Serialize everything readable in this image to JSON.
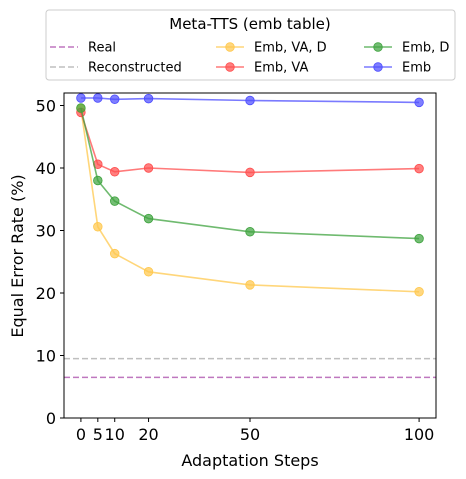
{
  "chart_data": {
    "type": "line",
    "legend": {
      "title": "Meta-TTS (emb table)",
      "placement": "top"
    },
    "xlabel": "Adaptation Steps",
    "ylabel": "Equal Error Rate (%)",
    "x": [
      0,
      5,
      10,
      20,
      50,
      100
    ],
    "xticks": [
      "0",
      "5",
      "10",
      "20",
      "50",
      "100"
    ],
    "yticks": [
      "0",
      "10",
      "20",
      "30",
      "40",
      "50"
    ],
    "xlim": [
      -5,
      105
    ],
    "ylim": [
      0,
      52
    ],
    "grid": false,
    "reference_lines": [
      {
        "name": "Real",
        "value": 6.5,
        "color": "#bf77bf",
        "style": "dashed"
      },
      {
        "name": "Reconstructed",
        "value": 9.5,
        "color": "#bfbfbf",
        "style": "dashed"
      }
    ],
    "series": [
      {
        "name": "Emb, VA, D",
        "color": "#ffc84d",
        "values": [
          49.5,
          30.6,
          26.3,
          23.4,
          21.3,
          20.2
        ]
      },
      {
        "name": "Emb, VA",
        "color": "#ff4d4d",
        "values": [
          48.9,
          40.6,
          39.4,
          40.0,
          39.3,
          39.9
        ]
      },
      {
        "name": "Emb, D",
        "color": "#3fa33f",
        "values": [
          49.6,
          38.0,
          34.7,
          31.9,
          29.8,
          28.7
        ]
      },
      {
        "name": "Emb",
        "color": "#4d4dff",
        "values": [
          51.2,
          51.2,
          51.0,
          51.1,
          50.8,
          50.5
        ]
      }
    ]
  }
}
